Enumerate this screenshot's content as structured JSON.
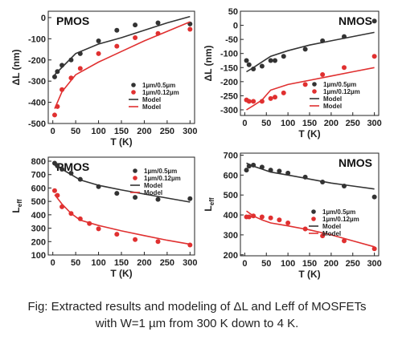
{
  "caption": {
    "line1": "Fig: Extracted results and modeling of ΔL and Leff of MOSFETs",
    "line2": "with W=1 µm from 300 K down to 4 K."
  },
  "colors": {
    "dark": "#333333",
    "red": "#e03030"
  },
  "chart_data": [
    {
      "type": "scatter",
      "title": "PMOS",
      "xlabel": "T (K)",
      "ylabel": "ΔL (nm)",
      "ylabel_sub": "",
      "xlim": [
        -10,
        310
      ],
      "ylim": [
        -500,
        30
      ],
      "xticks": [
        0,
        50,
        100,
        150,
        200,
        250,
        300
      ],
      "yticks": [
        0,
        -100,
        -200,
        -300,
        -400,
        -500
      ],
      "legend": [
        "1µm/0.5µm",
        "1µm/0.12µm",
        "Model",
        "Model"
      ],
      "series": [
        {
          "name": "1µm/0.5µm",
          "kind": "points",
          "color": "dark",
          "x": [
            4,
            10,
            20,
            40,
            60,
            100,
            140,
            180,
            230,
            300
          ],
          "y": [
            -280,
            -255,
            -225,
            -200,
            -170,
            -110,
            -60,
            -35,
            -25,
            -30
          ]
        },
        {
          "name": "1µm/0.12µm",
          "kind": "points",
          "color": "red",
          "x": [
            4,
            10,
            20,
            40,
            60,
            100,
            140,
            180,
            230,
            300
          ],
          "y": [
            -460,
            -420,
            -340,
            -285,
            -240,
            -170,
            -135,
            -95,
            -75,
            -55
          ]
        },
        {
          "name": "Model",
          "kind": "line",
          "color": "dark",
          "x": [
            4,
            20,
            50,
            100,
            150,
            200,
            250,
            300
          ],
          "y": [
            -270,
            -235,
            -170,
            -125,
            -95,
            -60,
            -25,
            5
          ]
        },
        {
          "name": "Model",
          "kind": "line",
          "color": "red",
          "x": [
            4,
            20,
            50,
            100,
            150,
            200,
            250,
            300
          ],
          "y": [
            -430,
            -350,
            -270,
            -210,
            -160,
            -110,
            -65,
            -20
          ]
        }
      ]
    },
    {
      "type": "scatter",
      "title": "NMOS",
      "xlabel": "T (K)",
      "ylabel": "ΔL (nm)",
      "ylabel_sub": "",
      "xlim": [
        -10,
        310
      ],
      "ylim": [
        -320,
        50
      ],
      "xticks": [
        0,
        50,
        100,
        150,
        200,
        250,
        300
      ],
      "yticks": [
        50,
        0,
        -50,
        -100,
        -150,
        -200,
        -250,
        -300
      ],
      "legend": [
        "1µm/0.5µm",
        "1µm/0.12µm",
        "Model",
        "Model"
      ],
      "series": [
        {
          "name": "1µm/0.5µm",
          "kind": "points",
          "color": "dark",
          "x": [
            4,
            10,
            20,
            40,
            60,
            70,
            90,
            140,
            180,
            230,
            300
          ],
          "y": [
            -125,
            -140,
            -155,
            -145,
            -125,
            -125,
            -110,
            -85,
            -55,
            -40,
            15
          ]
        },
        {
          "name": "1µm/0.12µm",
          "kind": "points",
          "color": "red",
          "x": [
            4,
            10,
            20,
            40,
            60,
            70,
            90,
            140,
            180,
            230,
            300
          ],
          "y": [
            -265,
            -270,
            -270,
            -270,
            -260,
            -255,
            -240,
            -210,
            -175,
            -150,
            -110
          ]
        },
        {
          "name": "Model",
          "kind": "line",
          "color": "dark",
          "x": [
            4,
            20,
            40,
            60,
            100,
            150,
            200,
            250,
            300
          ],
          "y": [
            -165,
            -150,
            -130,
            -110,
            -90,
            -70,
            -55,
            -40,
            -25
          ]
        },
        {
          "name": "Model",
          "kind": "line",
          "color": "red",
          "x": [
            4,
            20,
            40,
            60,
            100,
            150,
            200,
            250,
            300
          ],
          "y": [
            -300,
            -285,
            -265,
            -230,
            -210,
            -195,
            -180,
            -165,
            -150
          ]
        }
      ]
    },
    {
      "type": "scatter",
      "title": "PMOS",
      "xlabel": "T (K)",
      "ylabel": "L",
      "ylabel_sub": "eff",
      "xlim": [
        -10,
        310
      ],
      "ylim": [
        100,
        830
      ],
      "xticks": [
        0,
        50,
        100,
        150,
        200,
        250,
        300
      ],
      "yticks": [
        800,
        700,
        600,
        500,
        400,
        300,
        200,
        100
      ],
      "legend": [
        "1µm/0.5µm",
        "1µm/0.12µm",
        "Model",
        "Model"
      ],
      "series": [
        {
          "name": "1µm/0.5µm",
          "kind": "points",
          "color": "dark",
          "x": [
            4,
            10,
            20,
            40,
            60,
            100,
            140,
            180,
            230,
            300
          ],
          "y": [
            785,
            765,
            740,
            710,
            665,
            610,
            560,
            530,
            515,
            520
          ]
        },
        {
          "name": "1µm/0.12µm",
          "kind": "points",
          "color": "red",
          "x": [
            4,
            10,
            20,
            40,
            60,
            80,
            100,
            140,
            180,
            230,
            300
          ],
          "y": [
            580,
            545,
            460,
            410,
            370,
            335,
            295,
            255,
            215,
            200,
            175
          ]
        },
        {
          "name": "Model",
          "kind": "line",
          "color": "dark",
          "x": [
            4,
            20,
            40,
            60,
            100,
            150,
            200,
            250,
            300
          ],
          "y": [
            770,
            740,
            700,
            660,
            620,
            585,
            555,
            525,
            495
          ]
        },
        {
          "name": "Model",
          "kind": "line",
          "color": "red",
          "x": [
            4,
            20,
            40,
            60,
            100,
            150,
            200,
            250,
            300
          ],
          "y": [
            550,
            480,
            410,
            360,
            320,
            280,
            245,
            210,
            180
          ]
        }
      ]
    },
    {
      "type": "scatter",
      "title": "NMOS",
      "xlabel": "T (K)",
      "ylabel": "L",
      "ylabel_sub": "eff",
      "xlim": [
        -10,
        310
      ],
      "ylim": [
        195,
        710
      ],
      "xticks": [
        0,
        50,
        100,
        150,
        200,
        250,
        300
      ],
      "yticks": [
        700,
        600,
        500,
        400,
        300,
        200
      ],
      "legend": [
        "1µm/0.5µm",
        "1µm/0.12µm",
        "Model",
        "Model"
      ],
      "series": [
        {
          "name": "1µm/0.5µm",
          "kind": "points",
          "color": "dark",
          "x": [
            4,
            10,
            20,
            40,
            60,
            80,
            100,
            140,
            180,
            230,
            300
          ],
          "y": [
            625,
            645,
            650,
            640,
            625,
            620,
            610,
            590,
            565,
            545,
            490
          ]
        },
        {
          "name": "1µm/0.12µm",
          "kind": "points",
          "color": "red",
          "x": [
            4,
            10,
            20,
            40,
            60,
            80,
            100,
            140,
            180,
            230,
            300
          ],
          "y": [
            390,
            390,
            395,
            390,
            385,
            375,
            360,
            330,
            295,
            270,
            230
          ]
        },
        {
          "name": "Model",
          "kind": "line",
          "color": "dark",
          "x": [
            4,
            20,
            40,
            60,
            100,
            150,
            200,
            250,
            300
          ],
          "y": [
            660,
            645,
            630,
            615,
            600,
            580,
            560,
            545,
            530
          ]
        },
        {
          "name": "Model",
          "kind": "line",
          "color": "red",
          "x": [
            4,
            20,
            40,
            60,
            100,
            150,
            200,
            250,
            300
          ],
          "y": [
            420,
            395,
            375,
            360,
            345,
            325,
            300,
            270,
            240
          ]
        }
      ]
    }
  ]
}
